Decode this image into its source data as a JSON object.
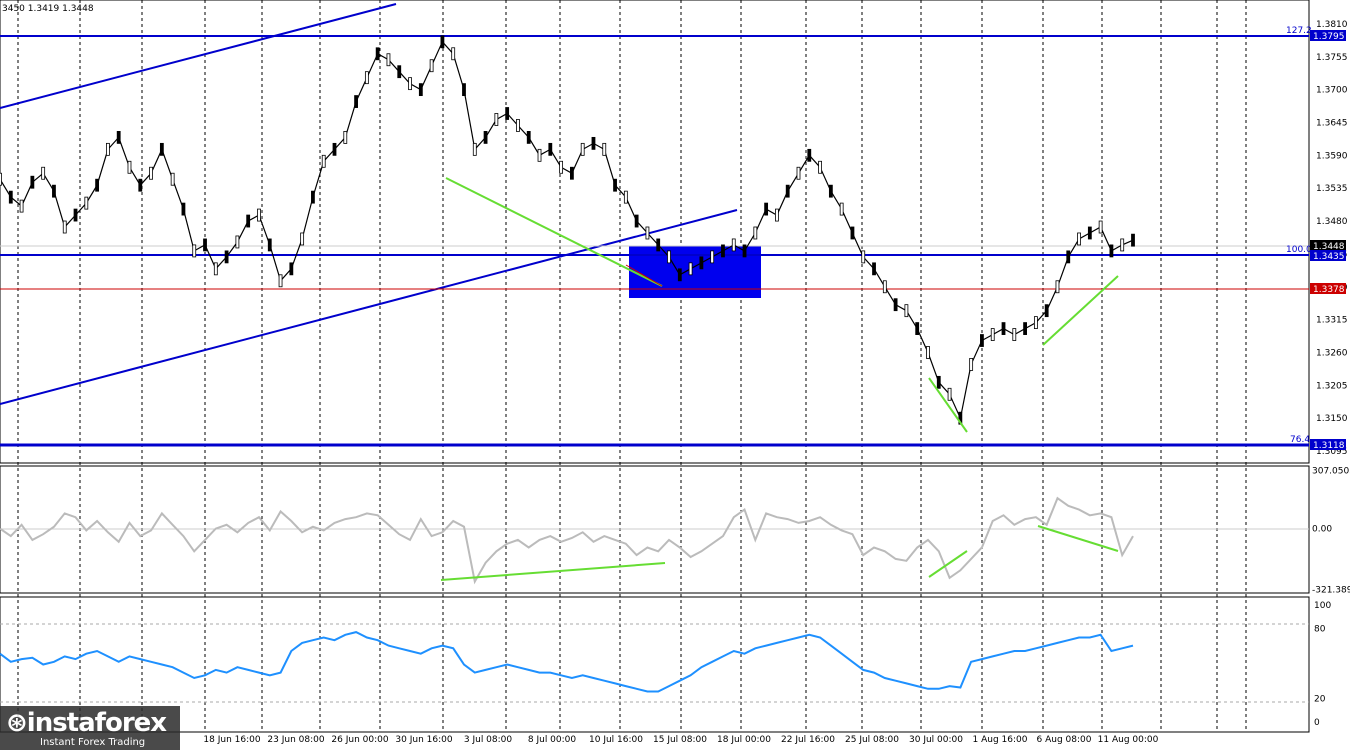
{
  "header_text": "3450 1.3419 1.3448",
  "colors": {
    "level_line": "#0000cc",
    "price_line": "#cc0000",
    "green_line": "#66dd33",
    "cci_line": "#bbbbbb",
    "rsi_line": "#1e90ff",
    "box_fill": "#0000ee"
  },
  "x_axis": {
    "labels": [
      "18 Jun 16:00",
      "23 Jun 08:00",
      "26 Jun 00:00",
      "30 Jun 16:00",
      "3 Jul 08:00",
      "8 Jul 00:00",
      "10 Jul 16:00",
      "15 Jul 08:00",
      "18 Jul 00:00",
      "22 Jul 16:00",
      "25 Jul 08:00",
      "30 Jul 00:00",
      "1 Aug 16:00",
      "6 Aug 08:00",
      "11 Aug 00:00"
    ]
  },
  "levels": {
    "fib_127": {
      "label": "127.2",
      "price": "1.3795"
    },
    "fib_100": {
      "label": "100.0",
      "price": "1.3435"
    },
    "fib_76": {
      "label": "76.4",
      "price": "1.3118"
    },
    "current_price": "1.3448",
    "red_level": "1.3378"
  },
  "chart_data": [
    {
      "type": "line",
      "name": "price",
      "yaxis_ticks": [
        "1.3810",
        "1.3755",
        "1.3700",
        "1.3645",
        "1.3590",
        "1.3535",
        "1.3480",
        "1.3425",
        "1.3370",
        "1.3315",
        "1.3260",
        "1.3205",
        "1.3150",
        "1.3095"
      ],
      "ylim": [
        1.3075,
        1.385
      ],
      "values": [
        1.355,
        1.352,
        1.3505,
        1.3545,
        1.356,
        1.353,
        1.347,
        1.349,
        1.351,
        1.354,
        1.36,
        1.362,
        1.357,
        1.354,
        1.356,
        1.36,
        1.355,
        1.35,
        1.343,
        1.344,
        1.34,
        1.342,
        1.3445,
        1.348,
        1.349,
        1.344,
        1.338,
        1.34,
        1.345,
        1.352,
        1.358,
        1.36,
        1.362,
        1.368,
        1.372,
        1.376,
        1.375,
        1.373,
        1.371,
        1.37,
        1.374,
        1.378,
        1.376,
        1.37,
        1.36,
        1.362,
        1.365,
        1.366,
        1.364,
        1.362,
        1.359,
        1.36,
        1.357,
        1.356,
        1.36,
        1.361,
        1.36,
        1.354,
        1.352,
        1.348,
        1.346,
        1.344,
        1.342,
        1.339,
        1.34,
        1.341,
        1.342,
        1.343,
        1.344,
        1.343,
        1.346,
        1.35,
        1.349,
        1.353,
        1.356,
        1.359,
        1.357,
        1.353,
        1.35,
        1.346,
        1.342,
        1.34,
        1.337,
        1.334,
        1.333,
        1.33,
        1.326,
        1.321,
        1.319,
        1.315,
        1.324,
        1.328,
        1.329,
        1.33,
        1.329,
        1.33,
        1.331,
        1.333,
        1.337,
        1.342,
        1.345,
        1.346,
        1.347,
        1.343,
        1.344,
        1.3448
      ]
    },
    {
      "type": "line",
      "name": "cci",
      "yaxis_ticks": [
        "307.0503",
        "0.00",
        "-321.3899"
      ],
      "ylim": [
        -340,
        330
      ],
      "values": [
        0,
        -40,
        20,
        -60,
        -30,
        10,
        80,
        60,
        -10,
        40,
        -20,
        -70,
        30,
        -40,
        -10,
        80,
        20,
        -40,
        -120,
        -60,
        0,
        20,
        -20,
        30,
        60,
        -10,
        90,
        40,
        -20,
        10,
        -10,
        30,
        50,
        60,
        80,
        70,
        20,
        -30,
        -60,
        50,
        -40,
        -20,
        40,
        10,
        -280,
        -180,
        -120,
        -80,
        -60,
        -100,
        -60,
        -40,
        -70,
        -50,
        -20,
        -70,
        -40,
        -60,
        -80,
        -140,
        -100,
        -120,
        -60,
        -100,
        -150,
        -120,
        -80,
        -40,
        60,
        100,
        -60,
        80,
        60,
        50,
        30,
        40,
        60,
        20,
        -10,
        -30,
        -140,
        -100,
        -120,
        -160,
        -170,
        -100,
        -60,
        -120,
        -260,
        -220,
        -160,
        -100,
        40,
        70,
        20,
        50,
        60,
        20,
        160,
        120,
        100,
        70,
        80,
        60,
        -140,
        -40
      ]
    },
    {
      "type": "line",
      "name": "rsi",
      "yaxis_ticks": [
        "100",
        "80",
        "20",
        "0"
      ],
      "ylim": [
        0,
        100
      ],
      "values": [
        58,
        52,
        54,
        55,
        50,
        52,
        56,
        54,
        58,
        60,
        56,
        52,
        56,
        54,
        52,
        50,
        48,
        44,
        40,
        42,
        46,
        44,
        48,
        46,
        44,
        42,
        44,
        60,
        66,
        68,
        70,
        68,
        72,
        74,
        70,
        68,
        64,
        62,
        60,
        58,
        62,
        64,
        62,
        50,
        44,
        46,
        48,
        50,
        48,
        46,
        44,
        44,
        42,
        40,
        42,
        40,
        38,
        36,
        34,
        32,
        30,
        30,
        34,
        38,
        42,
        48,
        52,
        56,
        60,
        58,
        62,
        64,
        66,
        68,
        70,
        72,
        70,
        64,
        58,
        52,
        46,
        44,
        40,
        38,
        36,
        34,
        32,
        32,
        34,
        33,
        52,
        54,
        56,
        58,
        60,
        60,
        62,
        64,
        66,
        68,
        70,
        70,
        72,
        60,
        62,
        64
      ]
    }
  ]
}
